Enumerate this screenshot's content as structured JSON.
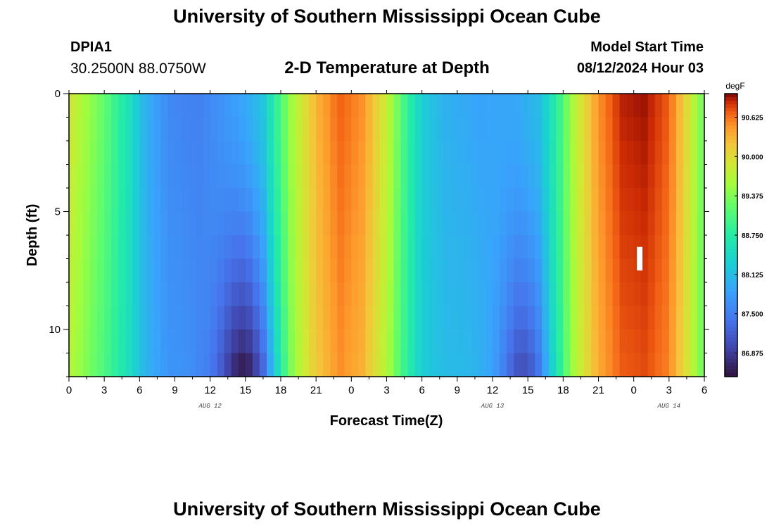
{
  "header": {
    "title": "University of Southern Mississippi Ocean Cube",
    "station_id": "DPIA1",
    "coordinates": "30.2500N  88.0750W",
    "chart_title": "2-D Temperature at Depth",
    "model_start_label": "Model Start Time",
    "model_start_value": "08/12/2024 Hour 03"
  },
  "footer": {
    "title": "University of Southern Mississippi Ocean Cube"
  },
  "chart_data": {
    "type": "heatmap",
    "title": "2-D Temperature at Depth",
    "xlabel": "Forecast Time(Z)",
    "ylabel": "Depth (ft)",
    "x_range_hours": [
      0,
      54
    ],
    "y_range_ft": [
      0,
      12
    ],
    "x_tick_labels": [
      "0",
      "3",
      "6",
      "9",
      "12",
      "15",
      "18",
      "21",
      "0",
      "3",
      "6",
      "9",
      "12",
      "15",
      "18",
      "21",
      "0",
      "3",
      "6"
    ],
    "x_tick_hours": [
      0,
      3,
      6,
      9,
      12,
      15,
      18,
      21,
      24,
      27,
      30,
      33,
      36,
      39,
      42,
      45,
      48,
      51,
      54
    ],
    "date_labels": [
      {
        "label": "AUG 12",
        "hour": 12
      },
      {
        "label": "AUG 13",
        "hour": 36
      },
      {
        "label": "AUG 14",
        "hour": 51
      }
    ],
    "y_tick_labels": [
      "0",
      "5",
      "10"
    ],
    "y_tick_values": [
      0,
      5,
      10
    ],
    "colorbar": {
      "unit": "degF",
      "min": 86.5,
      "max": 91.0,
      "tick_values": [
        90.625,
        90.0,
        89.375,
        88.75,
        88.125,
        87.5,
        86.875
      ],
      "tick_labels": [
        "90.625",
        "90.000",
        "89.375",
        "88.750",
        "88.125",
        "87.500",
        "86.875"
      ]
    },
    "surface_profile": [
      {
        "hour": 0,
        "temp": 89.9
      },
      {
        "hour": 3,
        "temp": 89.2
      },
      {
        "hour": 5,
        "temp": 88.6
      },
      {
        "hour": 6.5,
        "temp": 88.0
      },
      {
        "hour": 8.5,
        "temp": 87.6
      },
      {
        "hour": 11,
        "temp": 87.5
      },
      {
        "hour": 13,
        "temp": 87.7
      },
      {
        "hour": 15,
        "temp": 87.9
      },
      {
        "hour": 16.5,
        "temp": 88.2
      },
      {
        "hour": 17.5,
        "temp": 88.8
      },
      {
        "hour": 19,
        "temp": 89.6
      },
      {
        "hour": 21,
        "temp": 90.3
      },
      {
        "hour": 23,
        "temp": 90.7
      },
      {
        "hour": 25,
        "temp": 90.5
      },
      {
        "hour": 27,
        "temp": 89.8
      },
      {
        "hour": 28.5,
        "temp": 89.0
      },
      {
        "hour": 30,
        "temp": 88.3
      },
      {
        "hour": 32,
        "temp": 88.0
      },
      {
        "hour": 35,
        "temp": 87.85
      },
      {
        "hour": 38,
        "temp": 87.9
      },
      {
        "hour": 40,
        "temp": 88.1
      },
      {
        "hour": 41.5,
        "temp": 88.8
      },
      {
        "hour": 43,
        "temp": 89.7
      },
      {
        "hour": 45,
        "temp": 90.5
      },
      {
        "hour": 47,
        "temp": 90.9
      },
      {
        "hour": 49,
        "temp": 90.95
      },
      {
        "hour": 51,
        "temp": 90.7
      },
      {
        "hour": 52.5,
        "temp": 90.0
      },
      {
        "hour": 54,
        "temp": 89.2
      }
    ],
    "cold_pools": [
      {
        "center_hour": 15,
        "width_hours": 2.5,
        "max_cooling": 1.5
      },
      {
        "center_hour": 38.7,
        "width_hours": 2.2,
        "max_cooling": 1.1
      }
    ],
    "missing_cell": {
      "hour": 48.5,
      "depth_top": 6.5,
      "depth_bottom": 7.5
    }
  }
}
